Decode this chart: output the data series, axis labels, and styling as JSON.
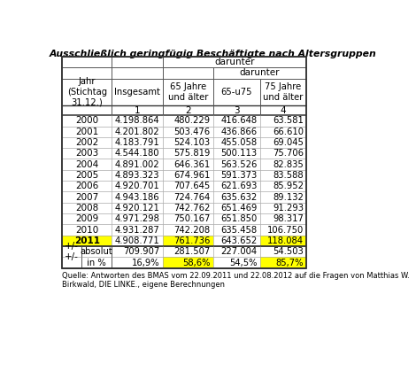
{
  "title": "Ausschließlich geringfügig Beschäftigte nach Altersgruppen",
  "header_row3": [
    "Jahr\n(Stichtag\n31.12.)",
    "Insgesamt",
    "65 Jahre\nund älter",
    "65-u75",
    "75 Jahre\nund älter"
  ],
  "years": [
    "2000",
    "2001",
    "2002",
    "2003",
    "2004",
    "2005",
    "2006",
    "2007",
    "2008",
    "2009",
    "2010",
    "2011"
  ],
  "col1": [
    "4.198.864",
    "4.201.802",
    "4.183.791",
    "4.544.180",
    "4.891.002",
    "4.893.323",
    "4.920.701",
    "4.943.186",
    "4.920.121",
    "4.971.298",
    "4.931.287",
    "4.908.771"
  ],
  "col2": [
    "480.229",
    "503.476",
    "524.103",
    "575.819",
    "646.361",
    "674.961",
    "707.645",
    "724.764",
    "742.762",
    "750.167",
    "742.208",
    "761.736"
  ],
  "col3": [
    "416.648",
    "436.866",
    "455.058",
    "500.113",
    "563.526",
    "591.373",
    "621.693",
    "635.632",
    "651.469",
    "651.850",
    "635.458",
    "643.652"
  ],
  "col4": [
    "63.581",
    "66.610",
    "69.045",
    "75.706",
    "82.835",
    "83.588",
    "85.952",
    "89.132",
    "91.293",
    "98.317",
    "106.750",
    "118.084"
  ],
  "footer_row1": [
    "709.907",
    "281.507",
    "227.004",
    "54.503"
  ],
  "footer_row2": [
    "16,9%",
    "58,6%",
    "54,5%",
    "85,7%"
  ],
  "source": "Quelle: Antworten des BMAS vom 22.09.2011 und 22.08.2012 auf die Fragen von Matthias W.\nBirkwald, DIE LINKE., eigene Berechnungen",
  "highlight_yellow": "#FFFF00",
  "bg_color": "#ffffff"
}
